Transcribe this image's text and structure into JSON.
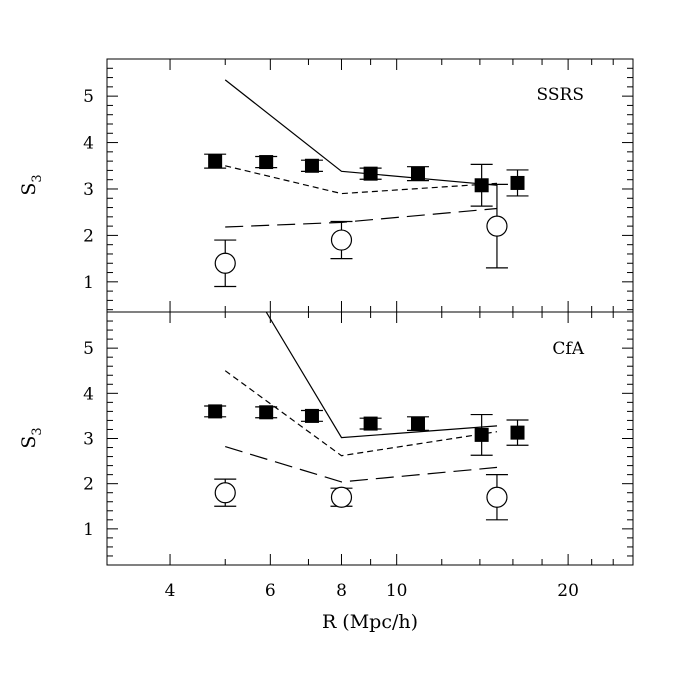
{
  "chart_data": [
    {
      "type": "scatter",
      "panel_label": "SSRS",
      "ylabel": "S",
      "ylabel_sub": "3",
      "xlabel": "",
      "x_scale": "log",
      "xlim": [
        3.1,
        26
      ],
      "ylim": [
        0.35,
        5.8
      ],
      "x_ticks": [
        4,
        6,
        8,
        10,
        20
      ],
      "y_ticks": [
        1,
        2,
        3,
        4,
        5
      ],
      "grid": false,
      "points": [
        {
          "name": "filled-squares",
          "marker": "filled-square",
          "x": [
            4.8,
            5.9,
            7.1,
            9.0,
            10.9,
            14.1,
            16.3
          ],
          "y": [
            3.6,
            3.58,
            3.5,
            3.33,
            3.33,
            3.08,
            3.13
          ],
          "err": [
            0.15,
            0.12,
            0.12,
            0.12,
            0.15,
            0.45,
            0.28
          ]
        },
        {
          "name": "open-circles",
          "marker": "open-circle",
          "x": [
            5.0,
            8.0,
            15.0
          ],
          "y": [
            1.4,
            1.9,
            2.2
          ],
          "err": [
            0.5,
            0.4,
            0.9
          ]
        }
      ],
      "lines": [
        {
          "name": "solid",
          "dash": "solid",
          "x": [
            5.0,
            8.0,
            15.0
          ],
          "y": [
            5.35,
            3.38,
            3.08
          ]
        },
        {
          "name": "short-dash",
          "dash": "short",
          "x": [
            5.0,
            8.0,
            15.0
          ],
          "y": [
            3.5,
            2.9,
            3.12
          ]
        },
        {
          "name": "long-dash",
          "dash": "long",
          "x": [
            5.0,
            8.0,
            15.0
          ],
          "y": [
            2.18,
            2.28,
            2.58
          ]
        }
      ]
    },
    {
      "type": "scatter",
      "panel_label": "CfA",
      "ylabel": "S",
      "ylabel_sub": "3",
      "xlabel": "R (Mpc/h)",
      "x_scale": "log",
      "xlim": [
        3.1,
        26
      ],
      "ylim": [
        0.2,
        5.8
      ],
      "x_ticks": [
        4,
        6,
        8,
        10,
        20
      ],
      "y_ticks": [
        1,
        2,
        3,
        4,
        5
      ],
      "grid": false,
      "points": [
        {
          "name": "filled-squares",
          "marker": "filled-square",
          "x": [
            4.8,
            5.9,
            7.1,
            9.0,
            10.9,
            14.1,
            16.3
          ],
          "y": [
            3.6,
            3.58,
            3.5,
            3.33,
            3.33,
            3.08,
            3.13
          ],
          "err": [
            0.12,
            0.12,
            0.12,
            0.12,
            0.15,
            0.45,
            0.28
          ]
        },
        {
          "name": "open-circles",
          "marker": "open-circle",
          "x": [
            5.0,
            8.0,
            15.0
          ],
          "y": [
            1.8,
            1.7,
            1.7
          ],
          "err": [
            0.3,
            0.2,
            0.5
          ]
        }
      ],
      "lines": [
        {
          "name": "solid",
          "dash": "solid",
          "x": [
            5.9,
            8.0,
            15.0
          ],
          "y": [
            5.8,
            3.02,
            3.28
          ]
        },
        {
          "name": "short-dash",
          "dash": "short",
          "x": [
            5.0,
            8.0,
            15.0
          ],
          "y": [
            4.5,
            2.62,
            3.15
          ]
        },
        {
          "name": "long-dash",
          "dash": "long",
          "x": [
            5.0,
            8.0,
            15.0
          ],
          "y": [
            2.82,
            2.04,
            2.36
          ]
        }
      ]
    }
  ]
}
